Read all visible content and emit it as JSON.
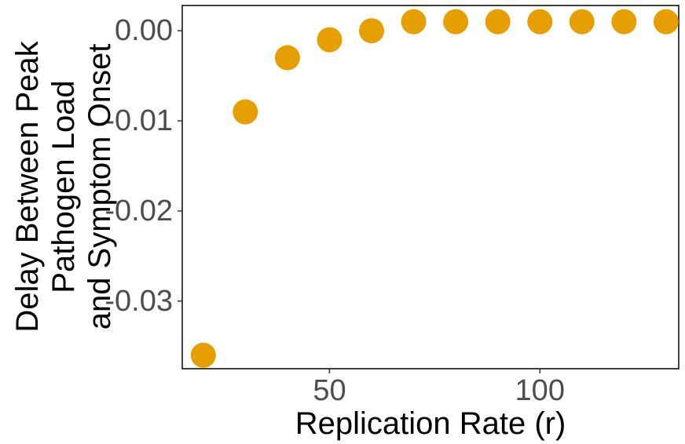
{
  "chart_data": {
    "type": "scatter",
    "title": "",
    "xlabel": "Replication Rate (r)",
    "ylabel_lines": [
      "Delay Between Peak",
      "Pathogen Load",
      "and Symptom Onset"
    ],
    "x": [
      20,
      30,
      40,
      50,
      60,
      70,
      80,
      90,
      100,
      110,
      120,
      130
    ],
    "y": [
      -0.036,
      -0.009,
      -0.003,
      -0.001,
      0.0,
      0.001,
      0.001,
      0.001,
      0.001,
      0.001,
      0.001,
      0.001
    ],
    "xlim": [
      15,
      133
    ],
    "ylim": [
      -0.0375,
      0.0028
    ],
    "x_ticks": [
      50,
      100
    ],
    "x_tick_labels": [
      "50",
      "100"
    ],
    "y_ticks": [
      0.0,
      -0.01,
      -0.02,
      -0.03
    ],
    "y_tick_labels": [
      "0.00",
      "-0.01",
      "-0.02",
      "-0.03"
    ],
    "point_color": "#E69F00",
    "grid": false,
    "legend": "none"
  }
}
